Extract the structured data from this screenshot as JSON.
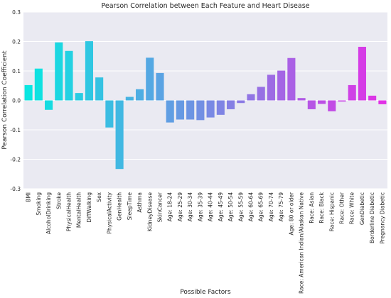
{
  "chart_data": {
    "type": "bar",
    "title": "Pearson Correlation between Each Feature and Heart Disease",
    "xlabel": "Possible Factors",
    "ylabel": "Pearson Correlation Coefficient",
    "ylim": [
      -0.3,
      0.3
    ],
    "yticks": [
      0.3,
      0.2,
      0.1,
      0.0,
      -0.1,
      -0.2,
      -0.3
    ],
    "ytick_labels": [
      "0.3",
      "0.2",
      "0.1",
      "0.0",
      "-0.1",
      "-0.2",
      "-0.3"
    ],
    "grid": true,
    "background": "#eaeaf2",
    "palette": "cool (cyan to magenta gradient across bars)",
    "categories": [
      "BMI",
      "Smoking",
      "AlcoholDrinking",
      "Stroke",
      "PhysicalHealth",
      "MentalHealth",
      "DiffWalking",
      "Sex",
      "PhysicalActivity",
      "GenHealth",
      "SleepTime",
      "Asthma",
      "KidneyDisease",
      "SkinCancer",
      "Age: 18-24",
      "Age: 25-29",
      "Age: 30-34",
      "Age: 35-39",
      "Age: 40-44",
      "Age: 45-49",
      "Age: 50-54",
      "Age: 55-59",
      "Age: 60-64",
      "Age: 65-69",
      "Age: 70-74",
      "Age: 75-79",
      "Age: 80 or older",
      "Race: American Indian/Alaskan Native",
      "Race: Asian",
      "Race: Black",
      "Race: Hispanic",
      "Race: Other",
      "Race: White",
      "GenDiabetic",
      "Borderline Diabetic",
      "Pregnancy Diabetic"
    ],
    "values": [
      0.052,
      0.108,
      -0.032,
      0.197,
      0.168,
      0.025,
      0.201,
      0.078,
      -0.092,
      -0.233,
      0.012,
      0.038,
      0.145,
      0.093,
      -0.075,
      -0.065,
      -0.065,
      -0.067,
      -0.058,
      -0.049,
      -0.03,
      -0.009,
      0.021,
      0.046,
      0.087,
      0.101,
      0.144,
      0.008,
      -0.03,
      -0.012,
      -0.037,
      -0.004,
      0.052,
      0.182,
      0.016,
      -0.013
    ]
  }
}
